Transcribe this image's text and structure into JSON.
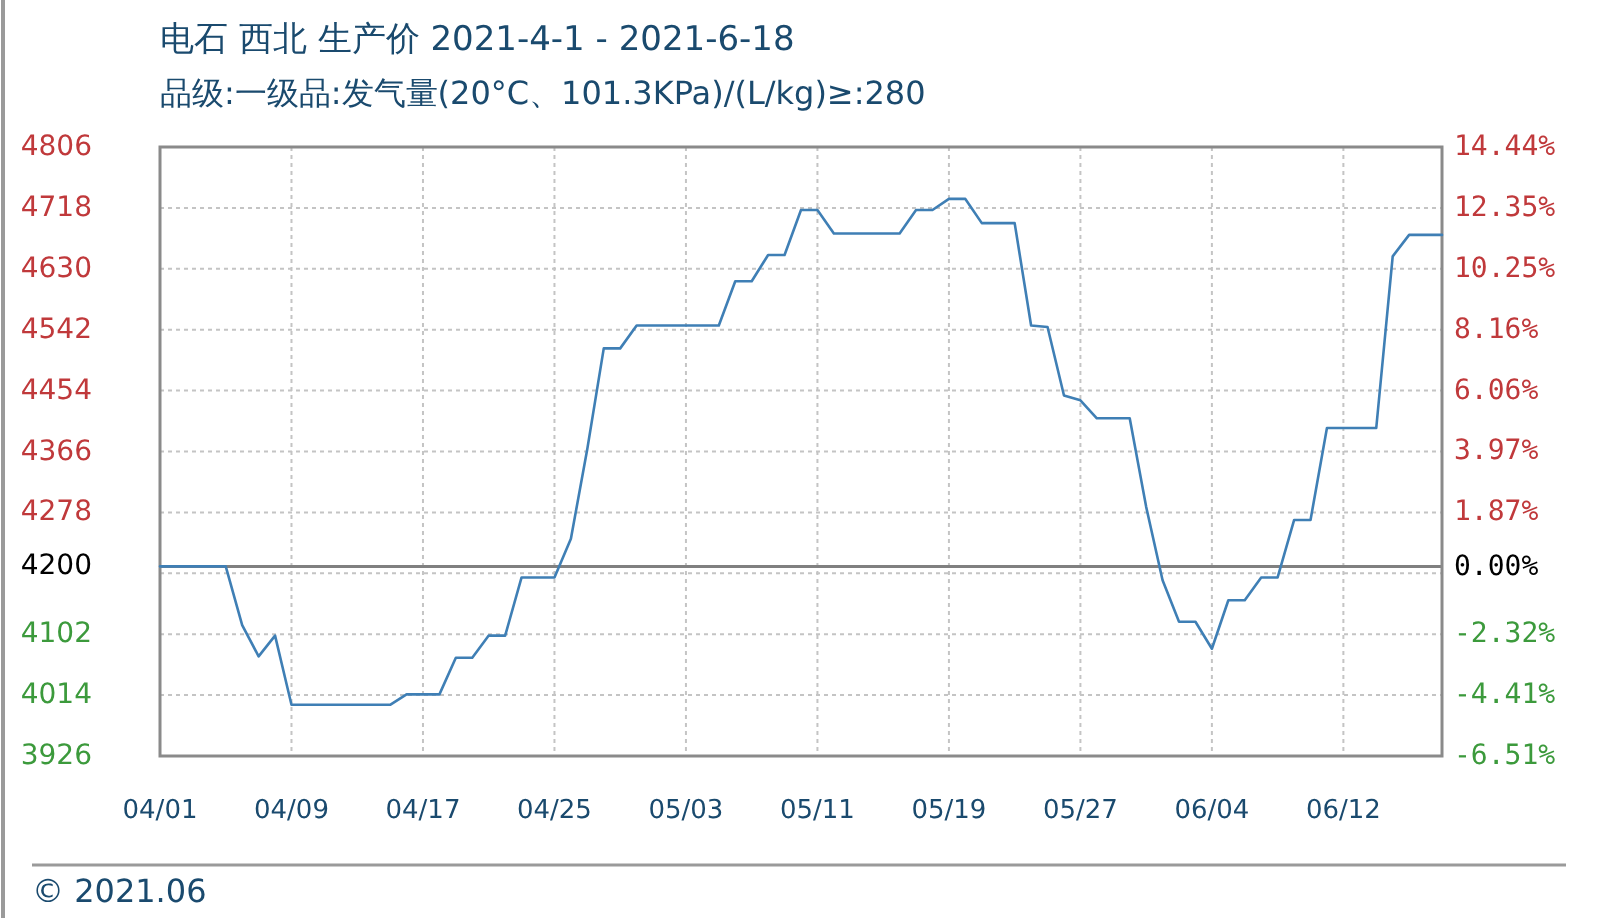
{
  "chart_data": {
    "type": "line",
    "title": "电石 西北 生产价 2021-4-1 - 2021-6-18",
    "subtitle": "品级:一级品:发气量(20°C、101.3KPa)/(L/kg)≥:280",
    "x": [
      "2021-04-01",
      "2021-04-05",
      "2021-04-06",
      "2021-04-07",
      "2021-04-08",
      "2021-04-09",
      "2021-04-15",
      "2021-04-16",
      "2021-04-18",
      "2021-04-19",
      "2021-04-20",
      "2021-04-21",
      "2021-04-22",
      "2021-04-23",
      "2021-04-25",
      "2021-04-26",
      "2021-04-27",
      "2021-04-28",
      "2021-04-29",
      "2021-04-30",
      "2021-05-05",
      "2021-05-06",
      "2021-05-07",
      "2021-05-08",
      "2021-05-09",
      "2021-05-10",
      "2021-05-11",
      "2021-05-12",
      "2021-05-16",
      "2021-05-17",
      "2021-05-18",
      "2021-05-19",
      "2021-05-20",
      "2021-05-21",
      "2021-05-23",
      "2021-05-24",
      "2021-05-25",
      "2021-05-26",
      "2021-05-27",
      "2021-05-28",
      "2021-05-30",
      "2021-05-31",
      "2021-06-01",
      "2021-06-02",
      "2021-06-03",
      "2021-06-04",
      "2021-06-05",
      "2021-06-06",
      "2021-06-07",
      "2021-06-08",
      "2021-06-09",
      "2021-06-10",
      "2021-06-11",
      "2021-06-14",
      "2021-06-15",
      "2021-06-16",
      "2021-06-18"
    ],
    "series": [
      {
        "color": "#3f7fb5",
        "values": [
          4200,
          4200,
          4115,
          4070,
          4100,
          4000,
          4000,
          4015,
          4015,
          4068,
          4068,
          4100,
          4100,
          4184,
          4184,
          4240,
          4370,
          4515,
          4515,
          4548,
          4548,
          4612,
          4612,
          4650,
          4650,
          4715,
          4715,
          4681,
          4681,
          4715,
          4715,
          4731,
          4731,
          4696,
          4696,
          4548,
          4546,
          4447,
          4440,
          4414,
          4414,
          4286,
          4180,
          4120,
          4120,
          4081,
          4151,
          4151,
          4184,
          4184,
          4267,
          4267,
          4400,
          4400,
          4648,
          4679,
          4679
        ]
      }
    ],
    "xlim": [
      "2021-04-01",
      "2021-06-18"
    ],
    "xticks": [
      {
        "value": "2021-04-01",
        "label": "04/01"
      },
      {
        "value": "2021-04-09",
        "label": "04/09"
      },
      {
        "value": "2021-04-17",
        "label": "04/17"
      },
      {
        "value": "2021-04-25",
        "label": "04/25"
      },
      {
        "value": "2021-05-03",
        "label": "05/03"
      },
      {
        "value": "2021-05-11",
        "label": "05/11"
      },
      {
        "value": "2021-05-19",
        "label": "05/19"
      },
      {
        "value": "2021-05-27",
        "label": "05/27"
      },
      {
        "value": "2021-06-04",
        "label": "06/04"
      },
      {
        "value": "2021-06-12",
        "label": "06/12"
      }
    ],
    "ylim": [
      3926,
      4806
    ],
    "yticks": [
      3926,
      4014,
      4102,
      {
        "value": 4190,
        "label": null
      },
      4200,
      4278,
      4366,
      4454,
      4542,
      4630,
      4718,
      4806
    ],
    "y2lim": [
      -6.51,
      14.44
    ],
    "y2ticks": [
      {
        "value": 14.44,
        "label": "14.44%"
      },
      {
        "value": 12.35,
        "label": "12.35%"
      },
      {
        "value": 10.25,
        "label": "10.25%"
      },
      {
        "value": 8.16,
        "label": "8.16%"
      },
      {
        "value": 6.06,
        "label": "6.06%"
      },
      {
        "value": 3.97,
        "label": "3.97%"
      },
      {
        "value": 1.87,
        "label": "1.87%"
      },
      {
        "value": 0,
        "label": "0.00%"
      },
      {
        "value": -2.32,
        "label": "-2.32%"
      },
      {
        "value": -4.41,
        "label": "-4.41%"
      },
      {
        "value": -6.51,
        "label": "-6.51%"
      }
    ],
    "ref_lines": [
      {
        "axis": "y",
        "value": 4200,
        "color": "#808080"
      }
    ],
    "grid": true,
    "line_style": "solid",
    "annotations": [
      "© 2021.06"
    ]
  }
}
